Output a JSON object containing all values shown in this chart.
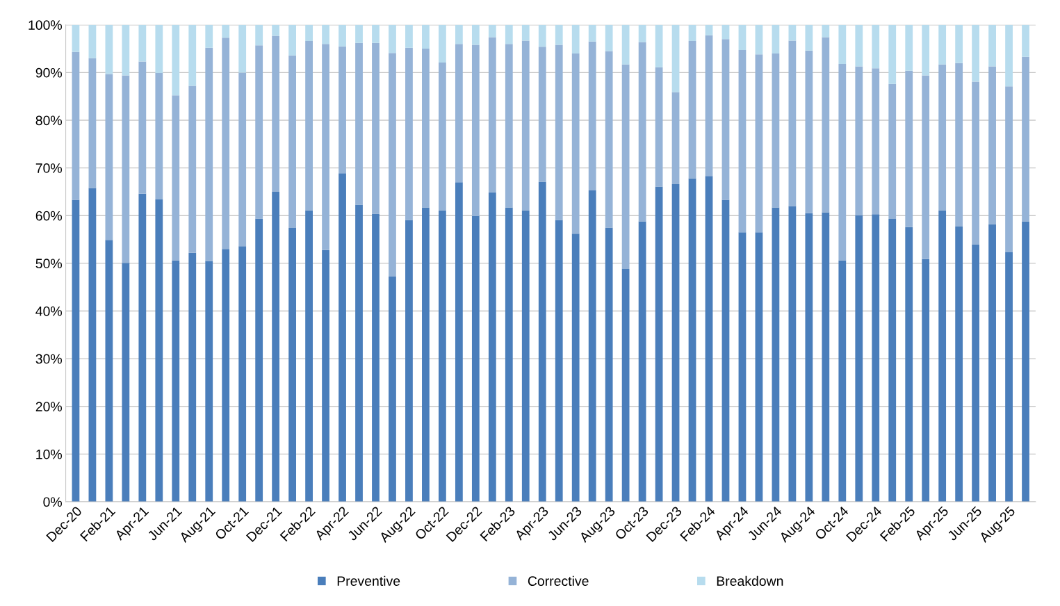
{
  "chart_data": {
    "type": "bar",
    "stacked": true,
    "categories": [
      "Dec-20",
      null,
      "Feb-21",
      null,
      "Apr-21",
      null,
      "Jun-21",
      null,
      "Aug-21",
      null,
      "Oct-21",
      null,
      "Dec-21",
      null,
      "Feb-22",
      null,
      "Apr-22",
      null,
      "Jun-22",
      null,
      "Aug-22",
      null,
      "Oct-22",
      null,
      "Dec-22",
      null,
      "Feb-23",
      null,
      "Apr-23",
      null,
      "Jun-23",
      null,
      "Aug-23",
      null,
      "Oct-23",
      null,
      "Dec-23",
      null,
      "Feb-24",
      null,
      "Apr-24",
      null,
      "Jun-24",
      null,
      "Aug-24",
      null,
      "Oct-24",
      null,
      "Dec-24",
      null,
      "Feb-25",
      null,
      "Apr-25",
      null,
      "Jun-25",
      null,
      "Aug-25",
      null
    ],
    "series": [
      {
        "name": "Preventive",
        "color": "#4a7ebb",
        "values": [
          63.3,
          65.8,
          54.9,
          50.1,
          64.6,
          63.4,
          50.6,
          52.2,
          50.5,
          53.0,
          53.6,
          59.4,
          65.0,
          57.4,
          61.1,
          52.8,
          68.9,
          62.3,
          60.4,
          47.2,
          59.1,
          61.7,
          61.1,
          67.0,
          59.9,
          64.9,
          61.7,
          61.1,
          67.1,
          59.1,
          56.2,
          65.3,
          57.5,
          48.8,
          58.8,
          66.1,
          66.6,
          67.8,
          68.3,
          63.3,
          56.5,
          56.5,
          61.7,
          62.0,
          60.5,
          60.7,
          50.6,
          60.1,
          60.3,
          59.3,
          57.6,
          50.9,
          61.1,
          57.7,
          54.0,
          58.2,
          52.3,
          58.8
        ]
      },
      {
        "name": "Corrective",
        "color": "#95b3d7",
        "values": [
          31.0,
          27.2,
          34.8,
          39.3,
          27.7,
          26.5,
          34.6,
          35.0,
          44.7,
          44.3,
          36.4,
          36.3,
          32.7,
          36.2,
          35.5,
          43.2,
          26.6,
          33.9,
          35.8,
          46.9,
          36.1,
          33.3,
          31.0,
          29.0,
          35.9,
          32.5,
          34.3,
          35.6,
          28.3,
          36.7,
          37.8,
          31.2,
          37.0,
          42.9,
          37.6,
          25.0,
          19.3,
          28.8,
          29.5,
          33.7,
          38.2,
          37.3,
          32.3,
          34.7,
          34.1,
          36.7,
          41.2,
          31.2,
          30.6,
          28.3,
          32.8,
          38.5,
          30.6,
          34.3,
          34.1,
          33.1,
          34.8,
          34.5
        ]
      },
      {
        "name": "Breakdown",
        "color": "#b7dcee",
        "values": [
          5.7,
          7.0,
          10.3,
          10.6,
          7.7,
          10.1,
          14.8,
          12.8,
          4.8,
          2.7,
          10.0,
          4.3,
          2.3,
          6.4,
          3.4,
          4.0,
          4.5,
          3.8,
          3.8,
          5.9,
          4.8,
          5.0,
          7.9,
          4.0,
          4.2,
          2.6,
          4.0,
          3.3,
          4.6,
          4.2,
          6.0,
          3.5,
          5.5,
          8.3,
          3.6,
          8.9,
          14.1,
          3.4,
          2.2,
          3.0,
          5.3,
          6.2,
          6.0,
          3.3,
          5.4,
          2.6,
          8.2,
          8.7,
          9.1,
          12.4,
          9.6,
          10.6,
          8.3,
          8.0,
          11.9,
          8.7,
          12.9,
          6.7
        ]
      }
    ],
    "ylim": [
      0,
      100
    ],
    "yticks": [
      {
        "value": 0,
        "label": "0%"
      },
      {
        "value": 10,
        "label": "10%"
      },
      {
        "value": 20,
        "label": "20%"
      },
      {
        "value": 30,
        "label": "30%"
      },
      {
        "value": 40,
        "label": "40%"
      },
      {
        "value": 50,
        "label": "50%"
      },
      {
        "value": 60,
        "label": "60%"
      },
      {
        "value": 70,
        "label": "70%"
      },
      {
        "value": 80,
        "label": "80%"
      },
      {
        "value": 90,
        "label": "90%"
      },
      {
        "value": 100,
        "label": "100%"
      }
    ],
    "grid": "y",
    "legend": "bottom"
  }
}
